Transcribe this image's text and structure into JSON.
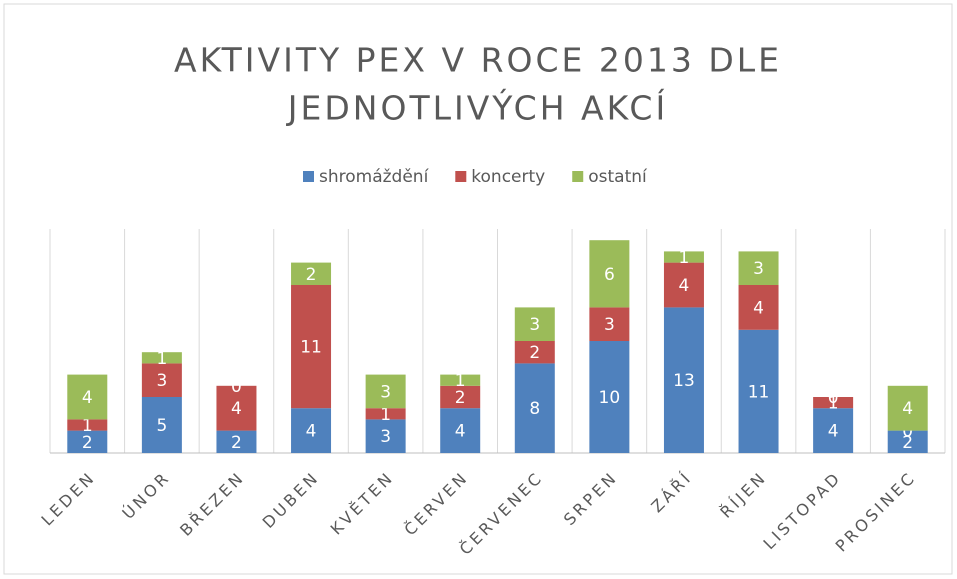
{
  "chart_data": {
    "type": "stacked_bar",
    "title": [
      "AKTIVITY PEX V ROCE 2013 DLE",
      "JEDNOTLIVÝCH AKCÍ"
    ],
    "categories": [
      "LEDEN",
      "ÚNOR",
      "BŘEZEN",
      "DUBEN",
      "KVĚTEN",
      "ČERVEN",
      "ČERVENEC",
      "SRPEN",
      "ZÁŘÍ",
      "ŘÍJEN",
      "LISTOPAD",
      "PROSINEC"
    ],
    "series": [
      {
        "name": "shromáždění",
        "color": "#4f81bd",
        "values": [
          2,
          5,
          2,
          4,
          3,
          4,
          8,
          10,
          13,
          11,
          4,
          2
        ]
      },
      {
        "name": "koncerty",
        "color": "#c0504d",
        "values": [
          1,
          3,
          4,
          11,
          1,
          2,
          2,
          3,
          4,
          4,
          1,
          0
        ]
      },
      {
        "name": "ostatní",
        "color": "#9bbb59",
        "values": [
          4,
          1,
          0,
          2,
          3,
          1,
          3,
          6,
          1,
          3,
          0,
          4
        ]
      }
    ],
    "ylim": [
      0,
      20
    ],
    "legend": "top"
  }
}
